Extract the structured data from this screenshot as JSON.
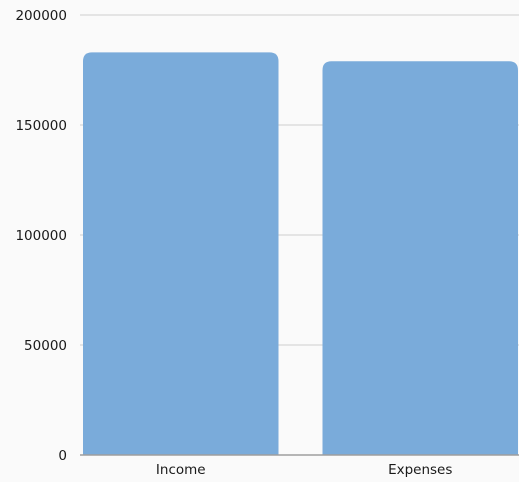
{
  "chart_data": {
    "type": "bar",
    "title": "",
    "xlabel": "",
    "ylabel": "",
    "categories": [
      "Income",
      "Expenses"
    ],
    "values": [
      183000,
      179000
    ],
    "ylim": [
      0,
      200000
    ],
    "yticks": [
      0,
      50000,
      100000,
      150000,
      200000
    ],
    "ytick_labels": [
      "0",
      "50000",
      "100000",
      "150000",
      "200000"
    ],
    "grid": true,
    "legend": "none",
    "colors": {
      "bar": "#7aabda",
      "grid": "#cfcfcf",
      "axis": "#9e9e9e",
      "background": "#fafafa"
    }
  }
}
